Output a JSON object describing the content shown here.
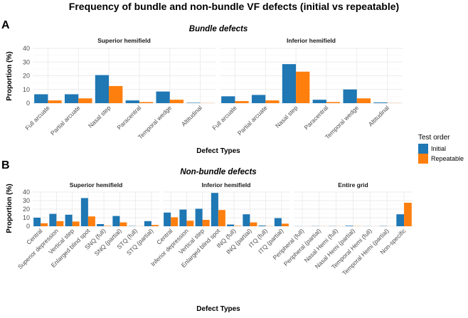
{
  "title": "Frequency of bundle and non-bundle VF defects (initial vs repeatable)",
  "legend": {
    "title": "Test order",
    "items": [
      {
        "label": "Initial",
        "color": "#1f77b4"
      },
      {
        "label": "Repeatable",
        "color": "#ff7f0e"
      }
    ]
  },
  "colors": {
    "initial": "#1f77b4",
    "repeatable": "#ff7f0e",
    "grid": "#ebebeb",
    "axis_text": "#4d4d4d"
  },
  "chart_data": [
    {
      "type": "bar",
      "panel_label": "A",
      "subtitle": "Bundle defects",
      "xlabel": "Defect Types",
      "ylabel": "Proportion (%)",
      "ylim": [
        0,
        40
      ],
      "yticks": [
        0,
        10,
        20,
        30,
        40
      ],
      "facets": [
        {
          "title": "Superior hemifield",
          "categories": [
            "Full arcuate",
            "Partial arcuate",
            "Nasal step",
            "Paracentral",
            "Temporal wedge",
            "Altitudinal"
          ],
          "series": [
            {
              "name": "Initial",
              "values": [
                6.5,
                6.5,
                20.5,
                2.0,
                8.5,
                0.3
              ]
            },
            {
              "name": "Repeatable",
              "values": [
                2.0,
                3.5,
                12.5,
                0.8,
                2.5,
                0.1
              ]
            }
          ]
        },
        {
          "title": "Inferior hemifield",
          "categories": [
            "Full arcuate",
            "Partial arcuate",
            "Nasal step",
            "Paracentral",
            "Temporal wedge",
            "Altitudinal"
          ],
          "series": [
            {
              "name": "Initial",
              "values": [
                5.0,
                6.0,
                28.5,
                2.5,
                10.0,
                0.5
              ]
            },
            {
              "name": "Repeatable",
              "values": [
                1.5,
                2.0,
                23.0,
                0.8,
                3.5,
                0.1
              ]
            }
          ]
        }
      ]
    },
    {
      "type": "bar",
      "panel_label": "B",
      "subtitle": "Non-bundle defects",
      "xlabel": "Defect Types",
      "ylabel": "Proportion (%)",
      "ylim": [
        0,
        40
      ],
      "yticks": [
        0,
        10,
        20,
        30,
        40
      ],
      "facets": [
        {
          "title": "Superior hemifield",
          "categories": [
            "Central",
            "Superior depression",
            "Vertical step",
            "Enlarged blind spot",
            "SNQ (full)",
            "SNQ (partial)",
            "STQ (full)",
            "STQ (partial)"
          ],
          "series": [
            {
              "name": "Initial",
              "values": [
                10.0,
                14.5,
                13.5,
                33.0,
                2.5,
                12.0,
                0.3,
                6.0
              ]
            },
            {
              "name": "Repeatable",
              "values": [
                3.5,
                6.0,
                5.5,
                11.5,
                0.5,
                4.5,
                0.1,
                1.5
              ]
            }
          ]
        },
        {
          "title": "Inferior hemifield",
          "categories": [
            "Central",
            "Inferior depression",
            "Vertical step",
            "Enlarged blind spot",
            "INQ (full)",
            "INQ (partial)",
            "ITQ (full)",
            "ITQ (partial)"
          ],
          "series": [
            {
              "name": "Initial",
              "values": [
                16.0,
                19.5,
                20.5,
                39.0,
                2.0,
                14.0,
                0.8,
                9.5
              ]
            },
            {
              "name": "Repeatable",
              "values": [
                10.5,
                6.5,
                7.5,
                19.0,
                0.5,
                4.5,
                0.2,
                3.0
              ]
            }
          ]
        },
        {
          "title": "Entire grid",
          "categories": [
            "Peripheral (full)",
            "Peripheral (partial)",
            "Nasal Hemi (full)",
            "Nasal Hemi (partial)",
            "Temporal Hemi (full)",
            "Temporal Hemi (partial)",
            "Non-specific"
          ],
          "series": [
            {
              "name": "Initial",
              "values": [
                0.1,
                0.2,
                0.2,
                0.6,
                0.1,
                0.3,
                14.0
              ]
            },
            {
              "name": "Repeatable",
              "values": [
                0.05,
                0.1,
                0.1,
                0.2,
                0.05,
                0.1,
                27.5
              ]
            }
          ]
        }
      ]
    }
  ]
}
